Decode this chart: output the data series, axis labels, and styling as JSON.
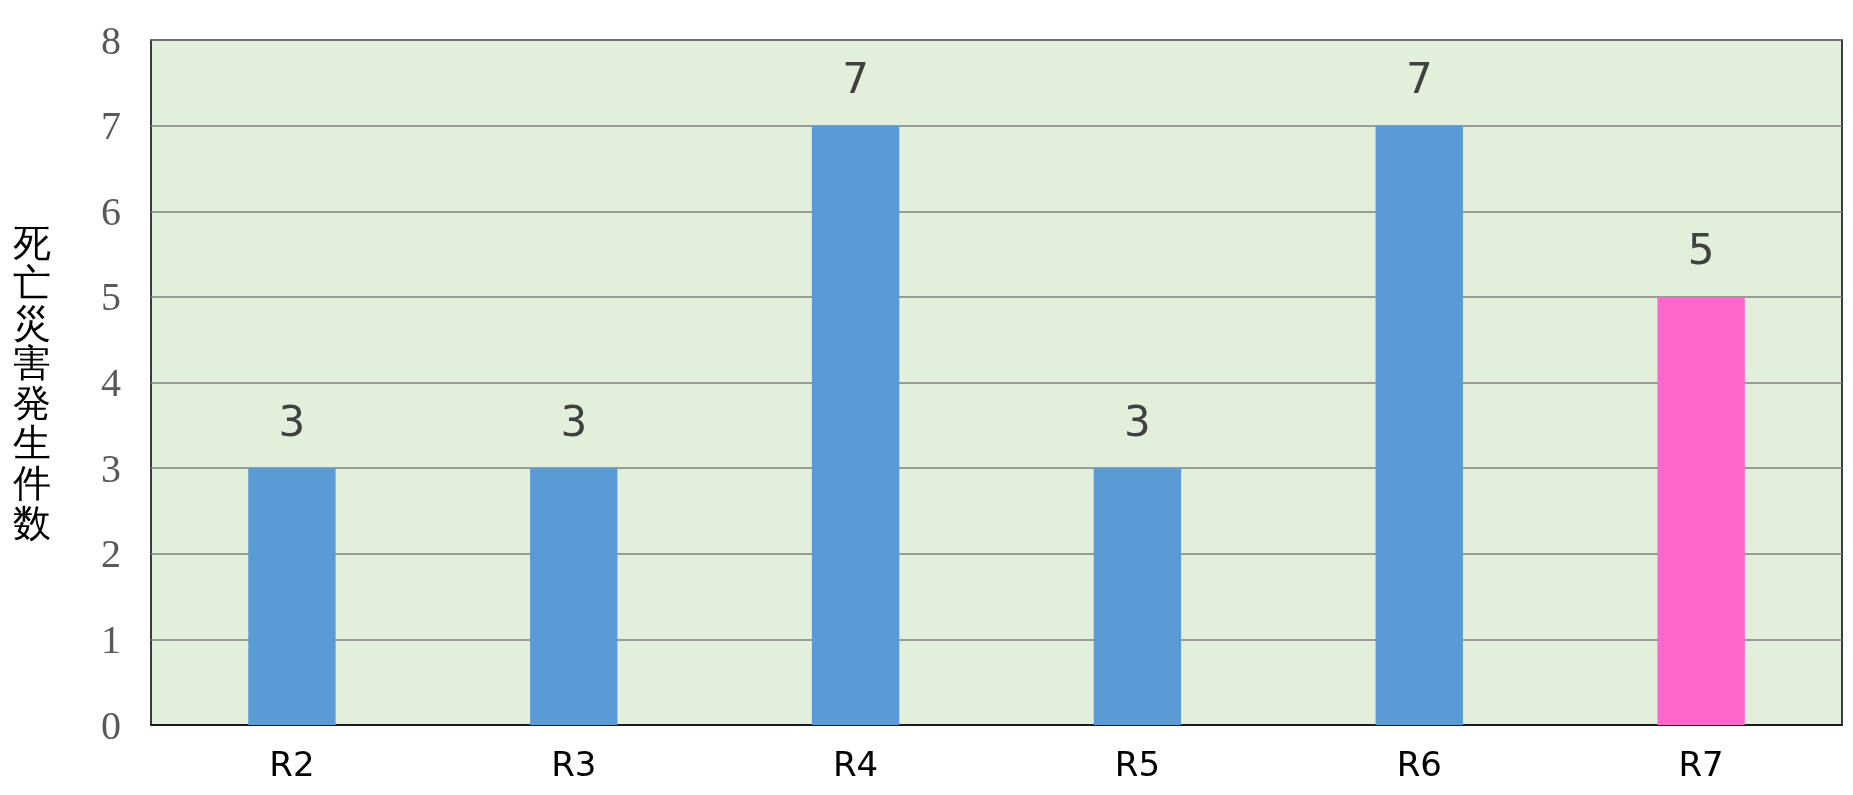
{
  "chart_data": {
    "type": "bar",
    "ylabel": "死亡災害発生件数",
    "categories": [
      "R2",
      "R3",
      "R4",
      "R5",
      "R6",
      "R7"
    ],
    "values": [
      3,
      3,
      7,
      3,
      7,
      5
    ],
    "colors": [
      "#5b9bd5",
      "#5b9bd5",
      "#5b9bd5",
      "#5b9bd5",
      "#5b9bd5",
      "#ff66cc"
    ],
    "ylim": [
      0,
      8
    ],
    "yticks": [
      0,
      1,
      2,
      3,
      4,
      5,
      6,
      7,
      8
    ],
    "grid": "y",
    "data_labels": true
  }
}
